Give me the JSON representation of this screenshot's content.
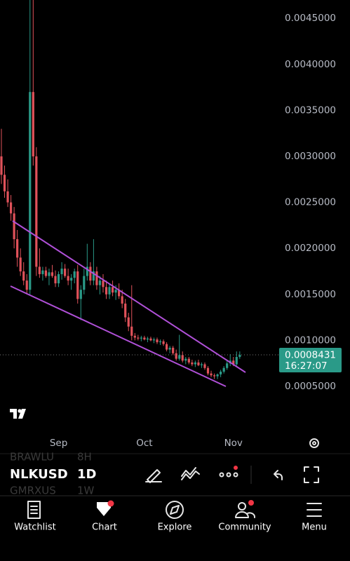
{
  "chart_data": {
    "type": "candlestick",
    "up_color": "#2a9a88",
    "down_color": "#e0525a",
    "x": [
      0,
      1,
      2,
      3,
      4,
      5,
      6,
      7,
      8,
      9,
      10,
      11,
      12,
      13,
      14,
      15,
      16,
      17,
      18,
      19,
      20,
      21,
      22,
      23,
      24,
      25,
      26,
      27,
      28,
      29,
      30,
      31,
      32,
      33,
      34,
      35,
      36,
      37,
      38,
      39,
      40,
      41,
      42,
      43,
      44,
      45,
      46,
      47,
      48,
      49,
      50,
      51,
      52,
      53,
      54,
      55,
      56,
      57,
      58,
      59,
      60,
      61,
      62,
      63,
      64,
      65,
      66,
      67,
      68,
      69,
      70,
      71,
      72,
      73,
      74,
      75
    ],
    "ohlc": [
      [
        0.003,
        0.0033,
        0.0027,
        0.0028
      ],
      [
        0.0028,
        0.0029,
        0.00255,
        0.00262
      ],
      [
        0.00262,
        0.00275,
        0.00245,
        0.0025
      ],
      [
        0.0025,
        0.00258,
        0.0023,
        0.00238
      ],
      [
        0.00238,
        0.00245,
        0.002,
        0.0021
      ],
      [
        0.0021,
        0.0022,
        0.0018,
        0.0019
      ],
      [
        0.0019,
        0.002,
        0.0017,
        0.00175
      ],
      [
        0.00175,
        0.00185,
        0.0016,
        0.00165
      ],
      [
        0.00165,
        0.00172,
        0.0015,
        0.00155
      ],
      [
        0.00155,
        0.0047,
        0.0015,
        0.0037
      ],
      [
        0.0037,
        0.0047,
        0.0029,
        0.003
      ],
      [
        0.003,
        0.0031,
        0.0017,
        0.0018
      ],
      [
        0.0018,
        0.002,
        0.00168,
        0.00172
      ],
      [
        0.00172,
        0.0018,
        0.00165,
        0.00176
      ],
      [
        0.00176,
        0.0018,
        0.00168,
        0.0017
      ],
      [
        0.0017,
        0.00178,
        0.0016,
        0.00174
      ],
      [
        0.00174,
        0.00182,
        0.00168,
        0.0017
      ],
      [
        0.0017,
        0.00176,
        0.00158,
        0.00162
      ],
      [
        0.00162,
        0.00175,
        0.00158,
        0.00172
      ],
      [
        0.00172,
        0.00185,
        0.00166,
        0.00178
      ],
      [
        0.00178,
        0.00183,
        0.00168,
        0.0017
      ],
      [
        0.0017,
        0.00178,
        0.0016,
        0.00165
      ],
      [
        0.00165,
        0.00172,
        0.00155,
        0.00168
      ],
      [
        0.00168,
        0.00178,
        0.00162,
        0.00175
      ],
      [
        0.00175,
        0.00182,
        0.0014,
        0.00145
      ],
      [
        0.00145,
        0.0016,
        0.00122,
        0.00155
      ],
      [
        0.00155,
        0.00178,
        0.0015,
        0.0017
      ],
      [
        0.0017,
        0.00205,
        0.00165,
        0.0018
      ],
      [
        0.0018,
        0.00185,
        0.0016,
        0.00165
      ],
      [
        0.00165,
        0.0021,
        0.0016,
        0.00175
      ],
      [
        0.00175,
        0.0018,
        0.00155,
        0.0016
      ],
      [
        0.0016,
        0.0017,
        0.0015,
        0.00165
      ],
      [
        0.00165,
        0.00172,
        0.00152,
        0.00158
      ],
      [
        0.00158,
        0.00165,
        0.00145,
        0.0015
      ],
      [
        0.0015,
        0.00162,
        0.00145,
        0.00158
      ],
      [
        0.00158,
        0.00165,
        0.00148,
        0.00152
      ],
      [
        0.00152,
        0.0016,
        0.00144,
        0.00155
      ],
      [
        0.00155,
        0.00162,
        0.00145,
        0.00148
      ],
      [
        0.00148,
        0.00155,
        0.00135,
        0.0014
      ],
      [
        0.0014,
        0.00145,
        0.0012,
        0.00125
      ],
      [
        0.00125,
        0.0013,
        0.0011,
        0.00115
      ],
      [
        0.00115,
        0.0016,
        0.001,
        0.00105
      ],
      [
        0.00105,
        0.00108,
        0.001,
        0.00103
      ],
      [
        0.00103,
        0.00106,
        0.001,
        0.00102
      ],
      [
        0.00102,
        0.00105,
        0.00099,
        0.00103
      ],
      [
        0.00103,
        0.00105,
        0.001,
        0.00101
      ],
      [
        0.00101,
        0.00104,
        0.00098,
        0.00102
      ],
      [
        0.00102,
        0.00104,
        0.00099,
        0.001
      ],
      [
        0.001,
        0.00103,
        0.00097,
        0.00101
      ],
      [
        0.00101,
        0.00103,
        0.00096,
        0.00098
      ],
      [
        0.00098,
        0.00101,
        0.00095,
        0.00099
      ],
      [
        0.00099,
        0.00101,
        0.00094,
        0.00096
      ],
      [
        0.00096,
        0.00098,
        0.00088,
        0.0009
      ],
      [
        0.0009,
        0.00094,
        0.00086,
        0.00092
      ],
      [
        0.00092,
        0.00094,
        0.00084,
        0.00086
      ],
      [
        0.00086,
        0.0009,
        0.00078,
        0.0008
      ],
      [
        0.0008,
        0.00106,
        0.00078,
        0.00084
      ],
      [
        0.00084,
        0.00088,
        0.00076,
        0.00078
      ],
      [
        0.00078,
        0.00082,
        0.00074,
        0.0008
      ],
      [
        0.0008,
        0.00082,
        0.00074,
        0.00076
      ],
      [
        0.00076,
        0.00079,
        0.00072,
        0.00074
      ],
      [
        0.00074,
        0.00078,
        0.00071,
        0.00076
      ],
      [
        0.00076,
        0.00079,
        0.00072,
        0.00073
      ],
      [
        0.00073,
        0.00076,
        0.0007,
        0.00074
      ],
      [
        0.00074,
        0.00076,
        0.00068,
        0.0007
      ],
      [
        0.0007,
        0.00072,
        0.00062,
        0.00064
      ],
      [
        0.00064,
        0.00067,
        0.0006,
        0.00062
      ],
      [
        0.00062,
        0.00064,
        0.00058,
        0.00061
      ],
      [
        0.00061,
        0.00064,
        0.00058,
        0.00063
      ],
      [
        0.00063,
        0.00068,
        0.0006,
        0.00066
      ],
      [
        0.00066,
        0.00072,
        0.00064,
        0.0007
      ],
      [
        0.0007,
        0.00078,
        0.00068,
        0.00075
      ],
      [
        0.00075,
        0.00085,
        0.00072,
        0.00078
      ],
      [
        0.00078,
        0.00082,
        0.00072,
        0.00074
      ],
      [
        0.00074,
        0.00088,
        0.00072,
        0.00082
      ],
      [
        0.00082,
        0.00088,
        0.0008,
        0.0008431
      ]
    ],
    "xlim": [
      -0.44,
      87.4
    ],
    "xticks": [
      {
        "value": 18,
        "label": "Sep"
      },
      {
        "value": 45,
        "label": "Oct"
      },
      {
        "value": 73,
        "label": "Nov"
      }
    ],
    "ylim": [
      1.2e-05,
      0.0047
    ],
    "yticks": [
      {
        "value": 0.0005,
        "label": "0.0005000"
      },
      {
        "value": 0.001,
        "label": "0.0010000"
      },
      {
        "value": 0.0015,
        "label": "0.0015000"
      },
      {
        "value": 0.002,
        "label": "0.0020000"
      },
      {
        "value": 0.0025,
        "label": "0.0025000"
      },
      {
        "value": 0.003,
        "label": "0.0030000"
      },
      {
        "value": 0.0035,
        "label": "0.0035000"
      },
      {
        "value": 0.004,
        "label": "0.0040000"
      },
      {
        "value": 0.0045,
        "label": "0.0045000"
      }
    ],
    "price_line": {
      "value": 0.0008431,
      "countdown": "16:27:07"
    }
  },
  "toolbar": {
    "symbol": "NLKUSD",
    "interval": "1D",
    "prev_symbol": "BRAWLU",
    "prev_interval": "8H",
    "next_symbol": "GMRXUS",
    "next_interval": "1W"
  },
  "nav": [
    "Watchlist",
    "Chart",
    "Explore",
    "Community",
    "Menu"
  ]
}
